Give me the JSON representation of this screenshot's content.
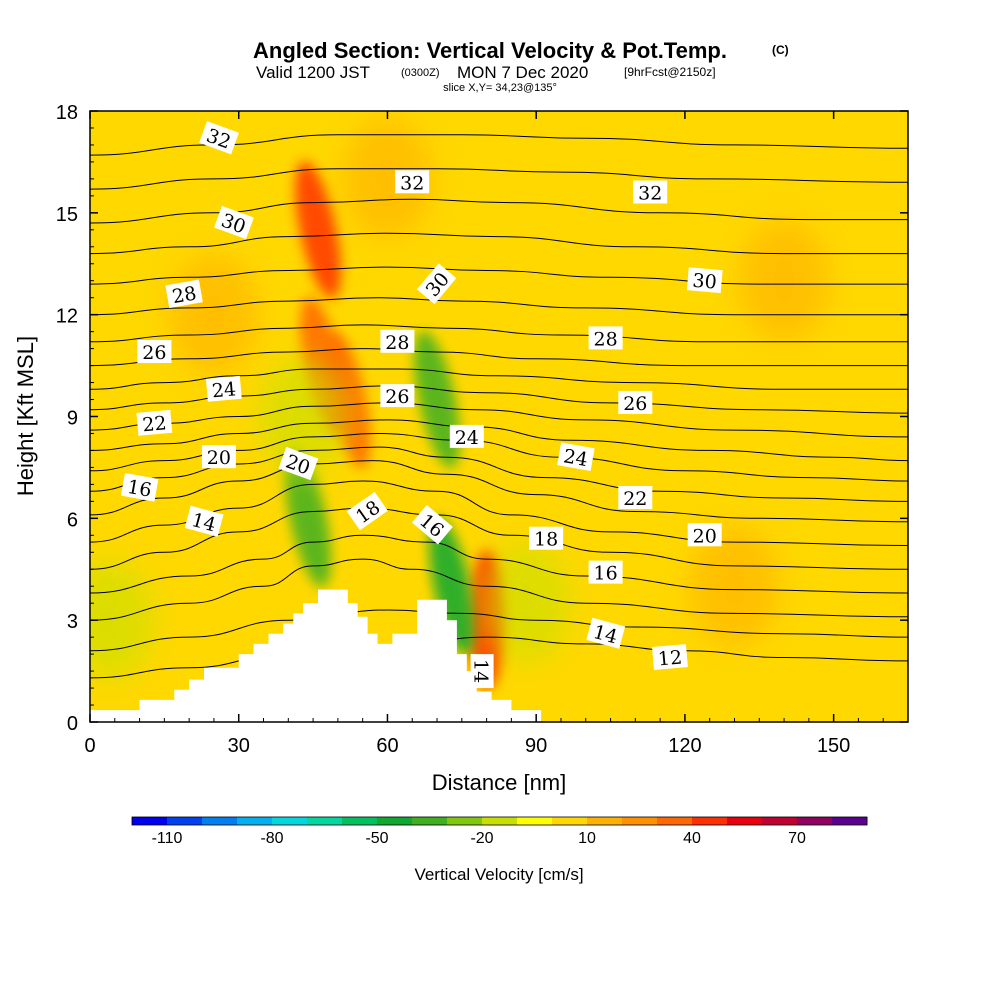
{
  "chart_data": {
    "type": "heatmap",
    "title": "Angled Section: Vertical Velocity & Pot.Temp.",
    "title_mark": "(C)",
    "subtitle_parts": [
      "Valid 1200 JST",
      "(0300Z)",
      "MON 7 Dec 2020",
      "[9hrFcst@2150z]"
    ],
    "slice_label": "slice X,Y= 34,23@135°",
    "xlabel": "Distance [nm]",
    "ylabel": "Height [Kft MSL]",
    "xlim": [
      0,
      165
    ],
    "ylim": [
      0,
      18
    ],
    "x_ticks": [
      0,
      30,
      60,
      90,
      120,
      150
    ],
    "y_ticks": [
      0,
      3,
      6,
      9,
      12,
      15,
      18
    ],
    "colorbar": {
      "label": "Vertical Velocity [cm/s]",
      "ticks": [
        -110,
        -80,
        -50,
        -20,
        10,
        40,
        70
      ],
      "min": -120,
      "max": 80,
      "step": 10,
      "colors": [
        "#0000f0",
        "#0040f0",
        "#0080f0",
        "#00b0f0",
        "#00d8e0",
        "#00d8a0",
        "#00c060",
        "#10a830",
        "#40b020",
        "#80c810",
        "#c8e000",
        "#ffff00",
        "#ffd800",
        "#ffb000",
        "#ff9000",
        "#ff6800",
        "#ff3000",
        "#e80010",
        "#c00030",
        "#900060",
        "#5a0090"
      ]
    },
    "terrain": [
      [
        0,
        0.35
      ],
      [
        10,
        0.35
      ],
      [
        10,
        0.65
      ],
      [
        17,
        0.65
      ],
      [
        17,
        0.95
      ],
      [
        20,
        0.95
      ],
      [
        20,
        1.25
      ],
      [
        23,
        1.25
      ],
      [
        23,
        1.6
      ],
      [
        30,
        1.6
      ],
      [
        30,
        2
      ],
      [
        33,
        2
      ],
      [
        33,
        2.3
      ],
      [
        36,
        2.3
      ],
      [
        36,
        2.6
      ],
      [
        39,
        2.6
      ],
      [
        39,
        2.9
      ],
      [
        41,
        2.9
      ],
      [
        41,
        3.2
      ],
      [
        43,
        3.2
      ],
      [
        43,
        3.5
      ],
      [
        46,
        3.5
      ],
      [
        46,
        3.9
      ],
      [
        52,
        3.9
      ],
      [
        52,
        3.5
      ],
      [
        54,
        3.5
      ],
      [
        54,
        3.1
      ],
      [
        56,
        3.1
      ],
      [
        56,
        2.6
      ],
      [
        58,
        2.6
      ],
      [
        58,
        2.3
      ],
      [
        61,
        2.3
      ],
      [
        61,
        2.6
      ],
      [
        63,
        2.6
      ],
      [
        63,
        2.6
      ],
      [
        66,
        2.6
      ],
      [
        66,
        3.6
      ],
      [
        72,
        3.6
      ],
      [
        72,
        3.0
      ],
      [
        74,
        3.0
      ],
      [
        74,
        2.0
      ],
      [
        76,
        2.0
      ],
      [
        76,
        1.5
      ],
      [
        78,
        1.5
      ],
      [
        78,
        0.9
      ],
      [
        81,
        0.9
      ],
      [
        81,
        0.65
      ],
      [
        85,
        0.65
      ],
      [
        85,
        0.35
      ],
      [
        91,
        0.35
      ],
      [
        91,
        0
      ],
      [
        0,
        0
      ]
    ],
    "vv_features": [
      {
        "x": 46,
        "y": 14.5,
        "value": 40
      },
      {
        "x": 47,
        "y": 10.5,
        "value": 30
      },
      {
        "x": 52,
        "y": 9.5,
        "value": 30
      },
      {
        "x": 80,
        "y": 3.0,
        "value": 40
      },
      {
        "x": 44,
        "y": 6.0,
        "value": -40
      },
      {
        "x": 70,
        "y": 9.5,
        "value": -40
      },
      {
        "x": 73,
        "y": 4.0,
        "value": -50
      },
      {
        "x": 43,
        "y": 9.0,
        "value": -20
      },
      {
        "x": 4,
        "y": 3.0,
        "value": -20
      },
      {
        "x": 88,
        "y": 3.5,
        "value": -20
      },
      {
        "x": 25,
        "y": 12.0,
        "value": 10
      },
      {
        "x": 140,
        "y": 13.0,
        "value": 10
      },
      {
        "x": 130,
        "y": 4.0,
        "value": 10
      },
      {
        "x": 60,
        "y": 16.0,
        "value": 10
      }
    ],
    "isentropes": [
      {
        "theta": 12,
        "points": [
          [
            0,
            1.3
          ],
          [
            20,
            1.6
          ],
          [
            40,
            2.0
          ],
          [
            60,
            2.2
          ],
          [
            80,
            2.5
          ],
          [
            100,
            2.3
          ],
          [
            120,
            2.1
          ],
          [
            140,
            1.9
          ],
          [
            165,
            1.8
          ]
        ]
      },
      {
        "theta": 13,
        "points": [
          [
            0,
            2.1
          ],
          [
            20,
            2.5
          ],
          [
            40,
            3.0
          ],
          [
            60,
            3.3
          ],
          [
            75,
            3.2
          ],
          [
            90,
            3.0
          ],
          [
            110,
            2.8
          ],
          [
            140,
            2.6
          ],
          [
            165,
            2.5
          ]
        ]
      },
      {
        "theta": 14,
        "points": [
          [
            0,
            3.0
          ],
          [
            20,
            3.5
          ],
          [
            35,
            4.0
          ],
          [
            45,
            4.6
          ],
          [
            55,
            4.8
          ],
          [
            65,
            4.5
          ],
          [
            80,
            4.0
          ],
          [
            100,
            3.5
          ],
          [
            130,
            3.2
          ],
          [
            165,
            3.1
          ]
        ]
      },
      {
        "theta": 15,
        "points": [
          [
            0,
            3.8
          ],
          [
            20,
            4.3
          ],
          [
            35,
            4.8
          ],
          [
            45,
            5.3
          ],
          [
            55,
            5.5
          ],
          [
            68,
            5.3
          ],
          [
            80,
            4.8
          ],
          [
            100,
            4.3
          ],
          [
            130,
            3.9
          ],
          [
            165,
            3.8
          ]
        ]
      },
      {
        "theta": 16,
        "points": [
          [
            0,
            4.5
          ],
          [
            15,
            5.0
          ],
          [
            30,
            5.6
          ],
          [
            45,
            6.2
          ],
          [
            55,
            6.3
          ],
          [
            70,
            6.1
          ],
          [
            85,
            5.5
          ],
          [
            105,
            5.0
          ],
          [
            130,
            4.6
          ],
          [
            165,
            4.5
          ]
        ]
      },
      {
        "theta": 17,
        "points": [
          [
            0,
            5.3
          ],
          [
            15,
            5.8
          ],
          [
            30,
            6.3
          ],
          [
            45,
            7.0
          ],
          [
            55,
            7.1
          ],
          [
            70,
            6.8
          ],
          [
            85,
            6.1
          ],
          [
            105,
            5.6
          ],
          [
            130,
            5.3
          ],
          [
            165,
            5.2
          ]
        ]
      },
      {
        "theta": 18,
        "points": [
          [
            0,
            6.1
          ],
          [
            15,
            6.6
          ],
          [
            30,
            7.1
          ],
          [
            45,
            7.6
          ],
          [
            57,
            7.7
          ],
          [
            72,
            7.3
          ],
          [
            90,
            6.7
          ],
          [
            110,
            6.2
          ],
          [
            135,
            6.0
          ],
          [
            165,
            5.9
          ]
        ]
      },
      {
        "theta": 19,
        "points": [
          [
            0,
            6.8
          ],
          [
            15,
            7.2
          ],
          [
            30,
            7.6
          ],
          [
            45,
            8.0
          ],
          [
            58,
            8.1
          ],
          [
            72,
            7.8
          ],
          [
            92,
            7.2
          ],
          [
            115,
            6.8
          ],
          [
            140,
            6.6
          ],
          [
            165,
            6.5
          ]
        ]
      },
      {
        "theta": 20,
        "points": [
          [
            0,
            7.4
          ],
          [
            15,
            7.7
          ],
          [
            30,
            8.0
          ],
          [
            45,
            8.4
          ],
          [
            58,
            8.5
          ],
          [
            75,
            8.3
          ],
          [
            95,
            7.8
          ],
          [
            120,
            7.4
          ],
          [
            145,
            7.2
          ],
          [
            165,
            7.1
          ]
        ]
      },
      {
        "theta": 21,
        "points": [
          [
            0,
            8.0
          ],
          [
            15,
            8.2
          ],
          [
            30,
            8.5
          ],
          [
            45,
            8.8
          ],
          [
            60,
            8.9
          ],
          [
            77,
            8.7
          ],
          [
            97,
            8.3
          ],
          [
            125,
            8.0
          ],
          [
            150,
            7.8
          ],
          [
            165,
            7.7
          ]
        ]
      },
      {
        "theta": 22,
        "points": [
          [
            0,
            8.6
          ],
          [
            15,
            8.8
          ],
          [
            30,
            9.0
          ],
          [
            45,
            9.3
          ],
          [
            60,
            9.4
          ],
          [
            78,
            9.2
          ],
          [
            100,
            8.9
          ],
          [
            130,
            8.6
          ],
          [
            165,
            8.4
          ]
        ]
      },
      {
        "theta": 23,
        "points": [
          [
            0,
            9.2
          ],
          [
            15,
            9.4
          ],
          [
            30,
            9.6
          ],
          [
            45,
            9.8
          ],
          [
            60,
            9.9
          ],
          [
            80,
            9.7
          ],
          [
            105,
            9.4
          ],
          [
            135,
            9.2
          ],
          [
            165,
            9.1
          ]
        ]
      },
      {
        "theta": 24,
        "points": [
          [
            0,
            9.8
          ],
          [
            15,
            10.0
          ],
          [
            30,
            10.2
          ],
          [
            45,
            10.4
          ],
          [
            62,
            10.4
          ],
          [
            82,
            10.2
          ],
          [
            110,
            10.0
          ],
          [
            140,
            9.8
          ],
          [
            165,
            9.8
          ]
        ]
      },
      {
        "theta": 25,
        "points": [
          [
            0,
            10.5
          ],
          [
            20,
            10.7
          ],
          [
            40,
            10.9
          ],
          [
            55,
            11.0
          ],
          [
            70,
            10.9
          ],
          [
            90,
            10.7
          ],
          [
            120,
            10.5
          ],
          [
            165,
            10.5
          ]
        ]
      },
      {
        "theta": 26,
        "points": [
          [
            0,
            11.2
          ],
          [
            20,
            11.4
          ],
          [
            40,
            11.6
          ],
          [
            55,
            11.7
          ],
          [
            72,
            11.6
          ],
          [
            95,
            11.4
          ],
          [
            125,
            11.2
          ],
          [
            165,
            11.2
          ]
        ]
      },
      {
        "theta": 27,
        "points": [
          [
            0,
            12.0
          ],
          [
            20,
            12.2
          ],
          [
            40,
            12.4
          ],
          [
            58,
            12.5
          ],
          [
            75,
            12.4
          ],
          [
            100,
            12.2
          ],
          [
            130,
            12.0
          ],
          [
            165,
            12.0
          ]
        ]
      },
      {
        "theta": 28,
        "points": [
          [
            0,
            12.9
          ],
          [
            20,
            13.1
          ],
          [
            40,
            13.3
          ],
          [
            60,
            13.4
          ],
          [
            80,
            13.3
          ],
          [
            105,
            13.1
          ],
          [
            135,
            12.9
          ],
          [
            165,
            12.9
          ]
        ]
      },
      {
        "theta": 29,
        "points": [
          [
            0,
            13.8
          ],
          [
            20,
            14.0
          ],
          [
            40,
            14.3
          ],
          [
            60,
            14.4
          ],
          [
            82,
            14.3
          ],
          [
            110,
            14.0
          ],
          [
            140,
            13.8
          ],
          [
            165,
            13.8
          ]
        ]
      },
      {
        "theta": 30,
        "points": [
          [
            0,
            14.7
          ],
          [
            25,
            15.0
          ],
          [
            45,
            15.3
          ],
          [
            65,
            15.4
          ],
          [
            85,
            15.3
          ],
          [
            115,
            15.0
          ],
          [
            145,
            14.8
          ],
          [
            165,
            14.8
          ]
        ]
      },
      {
        "theta": 31,
        "points": [
          [
            0,
            15.7
          ],
          [
            25,
            16.0
          ],
          [
            50,
            16.3
          ],
          [
            70,
            16.3
          ],
          [
            95,
            16.2
          ],
          [
            125,
            16.0
          ],
          [
            165,
            15.9
          ]
        ]
      },
      {
        "theta": 32,
        "points": [
          [
            0,
            16.7
          ],
          [
            25,
            17.0
          ],
          [
            50,
            17.3
          ],
          [
            75,
            17.3
          ],
          [
            100,
            17.2
          ],
          [
            130,
            17.0
          ],
          [
            165,
            16.9
          ]
        ]
      }
    ],
    "contour_labels": [
      {
        "text": "32",
        "x": 26,
        "y": 17.2,
        "rotate": 20
      },
      {
        "text": "30",
        "x": 29,
        "y": 14.7,
        "rotate": 20
      },
      {
        "text": "28",
        "x": 19,
        "y": 12.6,
        "rotate": -10
      },
      {
        "text": "26",
        "x": 13,
        "y": 10.9,
        "rotate": 0
      },
      {
        "text": "24",
        "x": 27,
        "y": 9.8,
        "rotate": -5
      },
      {
        "text": "22",
        "x": 13,
        "y": 8.8,
        "rotate": -5
      },
      {
        "text": "20",
        "x": 26,
        "y": 7.8,
        "rotate": 0
      },
      {
        "text": "16",
        "x": 10,
        "y": 6.9,
        "rotate": 10
      },
      {
        "text": "14",
        "x": 23,
        "y": 5.9,
        "rotate": 15
      },
      {
        "text": "20",
        "x": 42,
        "y": 7.6,
        "rotate": 20
      },
      {
        "text": "18",
        "x": 56,
        "y": 6.2,
        "rotate": -35
      },
      {
        "text": "28",
        "x": 62,
        "y": 11.2,
        "rotate": 0
      },
      {
        "text": "26",
        "x": 62,
        "y": 9.6,
        "rotate": 0
      },
      {
        "text": "32",
        "x": 65,
        "y": 15.9,
        "rotate": 0
      },
      {
        "text": "30",
        "x": 70,
        "y": 12.9,
        "rotate": -50
      },
      {
        "text": "24",
        "x": 76,
        "y": 8.4,
        "rotate": 0
      },
      {
        "text": "16",
        "x": 69,
        "y": 5.8,
        "rotate": 40
      },
      {
        "text": "14",
        "x": 79,
        "y": 1.5,
        "rotate": 90
      },
      {
        "text": "18",
        "x": 92,
        "y": 5.4,
        "rotate": 0
      },
      {
        "text": "16",
        "x": 104,
        "y": 4.4,
        "rotate": 0
      },
      {
        "text": "14",
        "x": 104,
        "y": 2.6,
        "rotate": 15
      },
      {
        "text": "12",
        "x": 117,
        "y": 1.9,
        "rotate": -5
      },
      {
        "text": "24",
        "x": 98,
        "y": 7.8,
        "rotate": 10
      },
      {
        "text": "22",
        "x": 110,
        "y": 6.6,
        "rotate": 0
      },
      {
        "text": "20",
        "x": 124,
        "y": 5.5,
        "rotate": 0
      },
      {
        "text": "28",
        "x": 104,
        "y": 11.3,
        "rotate": 0
      },
      {
        "text": "26",
        "x": 110,
        "y": 9.4,
        "rotate": 0
      },
      {
        "text": "30",
        "x": 124,
        "y": 13.0,
        "rotate": 5
      },
      {
        "text": "32",
        "x": 113,
        "y": 15.6,
        "rotate": 0
      }
    ]
  }
}
